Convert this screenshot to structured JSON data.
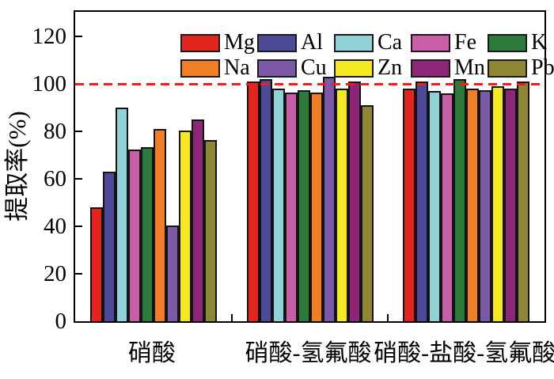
{
  "chart_data": {
    "type": "bar",
    "title": "",
    "xlabel": "",
    "ylabel": "提取率(%)",
    "ylim": [
      0,
      131
    ],
    "yticks": [
      0,
      20,
      40,
      60,
      80,
      100,
      120
    ],
    "grid": false,
    "legend_position": "top-inside",
    "legend_rows": [
      [
        "Mg",
        "Al",
        "Ca",
        "Fe",
        "K"
      ],
      [
        "Na",
        "Cu",
        "Zn",
        "Mn",
        "Pb"
      ]
    ],
    "categories": [
      "硝酸",
      "硝酸-氢氟酸",
      "硝酸-盐酸-氢氟酸"
    ],
    "series": [
      {
        "name": "Mg",
        "color": "#e2261e",
        "values": [
          48,
          101,
          98
        ]
      },
      {
        "name": "Al",
        "color": "#4d4b99",
        "values": [
          63,
          102,
          101
        ]
      },
      {
        "name": "Ca",
        "color": "#90d2d7",
        "values": [
          90,
          98,
          97
        ]
      },
      {
        "name": "Fe",
        "color": "#c75ea6",
        "values": [
          72.5,
          96.5,
          96
        ]
      },
      {
        "name": "K",
        "color": "#2b7a3b",
        "values": [
          73.5,
          97.5,
          102
        ]
      },
      {
        "name": "Na",
        "color": "#ef7e27",
        "values": [
          81,
          96.5,
          98
        ]
      },
      {
        "name": "Cu",
        "color": "#7b59a7",
        "values": [
          40.5,
          103,
          97.5
        ]
      },
      {
        "name": "Zn",
        "color": "#f3e822",
        "values": [
          80.5,
          98,
          99
        ]
      },
      {
        "name": "Mn",
        "color": "#8d2677",
        "values": [
          85,
          101,
          98
        ]
      },
      {
        "name": "Pb",
        "color": "#8d8635",
        "values": [
          76.5,
          91,
          101
        ]
      }
    ],
    "reference_line": {
      "value": 100,
      "color": "#fa1a15",
      "style": "dashed"
    },
    "bar_edge_color": "#141414",
    "axis_color": "#000000"
  }
}
